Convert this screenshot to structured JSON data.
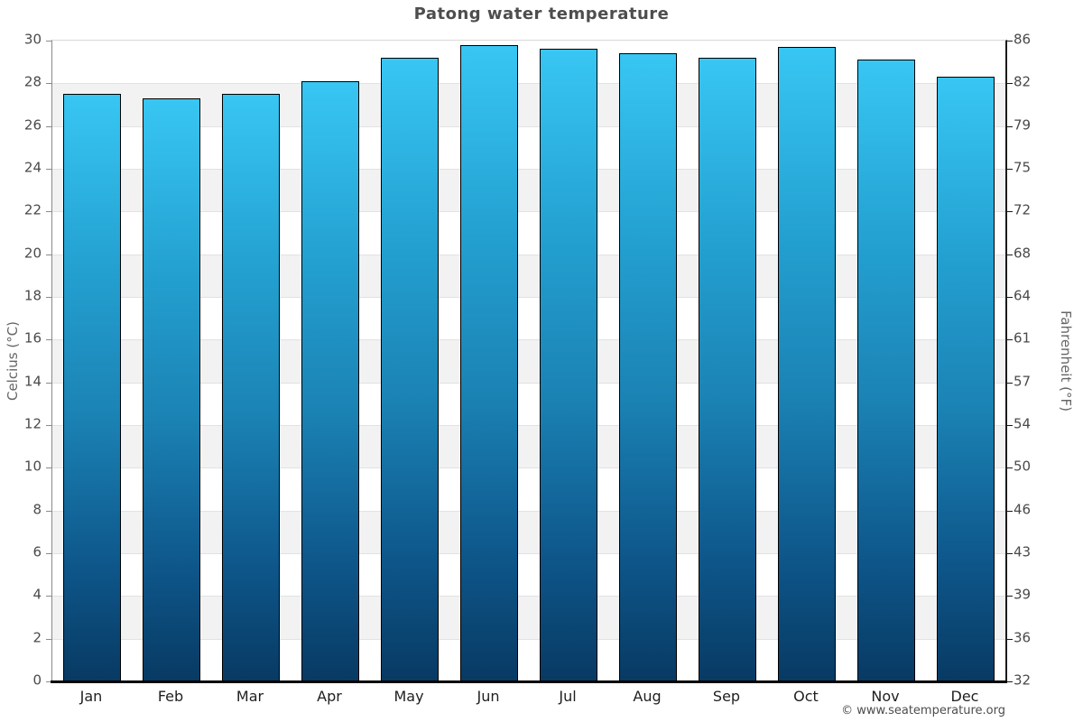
{
  "title": "Patong water temperature",
  "footer": {
    "copyright": "© www.seatemperature.org"
  },
  "chart_data": {
    "type": "bar",
    "title": "Patong water temperature",
    "categories": [
      "Jan",
      "Feb",
      "Mar",
      "Apr",
      "May",
      "Jun",
      "Jul",
      "Aug",
      "Sep",
      "Oct",
      "Nov",
      "Dec"
    ],
    "values": [
      27.5,
      27.3,
      27.5,
      28.1,
      29.2,
      29.8,
      29.6,
      29.4,
      29.2,
      29.7,
      29.1,
      28.3
    ],
    "unit": "°C",
    "ylabel_left": "Celcius (°C)",
    "ylabel_right": "Fahrenheit (°F)",
    "ylim": [
      0,
      30
    ],
    "ytick_step": 2,
    "yticks_celsius": [
      30,
      28,
      26,
      24,
      22,
      20,
      18,
      16,
      14,
      12,
      10,
      8,
      6,
      4,
      2,
      0
    ],
    "yticks_fahrenheit": [
      "86",
      "82",
      "79",
      "75",
      "72",
      "68",
      "64",
      "61",
      "57",
      "54",
      "50",
      "46",
      "43",
      "39",
      "36",
      "32"
    ],
    "grid": "alternating-horizontal-bands",
    "legend": "none",
    "colors": {
      "bar_gradient_top": "#38c6f3",
      "bar_gradient_bottom": "#083a63",
      "bar_border": "#000000",
      "band_gray": "#f2f2f2",
      "axis_bottom": "#000000",
      "title_text": "#4d4d4d",
      "tick_text": "#4a4a4a",
      "axis_label_text": "#666666"
    }
  }
}
